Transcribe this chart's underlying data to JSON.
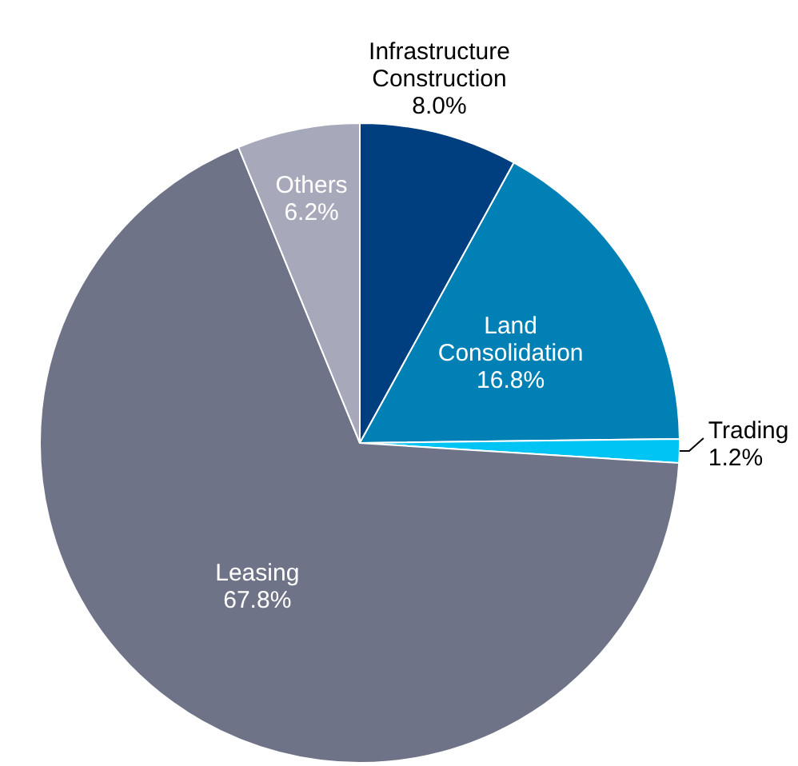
{
  "chart_data": {
    "type": "pie",
    "categories": [
      "Infrastructure Construction",
      "Land Consolidation",
      "Trading",
      "Leasing",
      "Others"
    ],
    "values": [
      8.0,
      16.8,
      1.2,
      67.8,
      6.2
    ],
    "colors": [
      "#003f7f",
      "#0080b4",
      "#00c4f4",
      "#6f7387",
      "#a7a9bb"
    ],
    "value_labels": [
      "8.0%",
      "16.8%",
      "1.2%",
      "67.8%",
      "6.2%"
    ],
    "legend": false
  }
}
